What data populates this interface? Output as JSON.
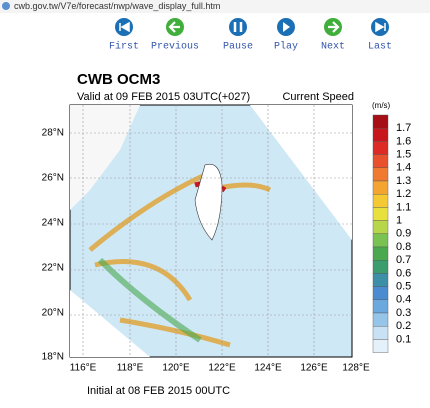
{
  "header": {
    "url": "cwb.gov.tw/V7e/forecast/nwp/wave_display_full.htm"
  },
  "controls": [
    "First",
    "Previous",
    "Pause",
    "Play",
    "Next",
    "Last"
  ],
  "map": {
    "title": "CWB OCM3",
    "valid": "Valid at 09 FEB 2015 03UTC(+027)",
    "variable": "Current Speed",
    "unit": "(m/s)",
    "lat_labels": [
      "28°N",
      "26°N",
      "24°N",
      "22°N",
      "20°N",
      "18°N"
    ],
    "lon_labels": [
      "116°E",
      "118°E",
      "120°E",
      "122°E",
      "124°E",
      "126°E",
      "128°E"
    ],
    "colorbar": [
      1.7,
      1.6,
      1.5,
      1.4,
      1.3,
      1.2,
      1.1,
      1,
      0.9,
      0.8,
      0.7,
      0.6,
      0.5,
      0.4,
      0.3,
      0.2,
      0.1
    ],
    "initial": "Initial at 08 FEB 2015 00UTC"
  }
}
